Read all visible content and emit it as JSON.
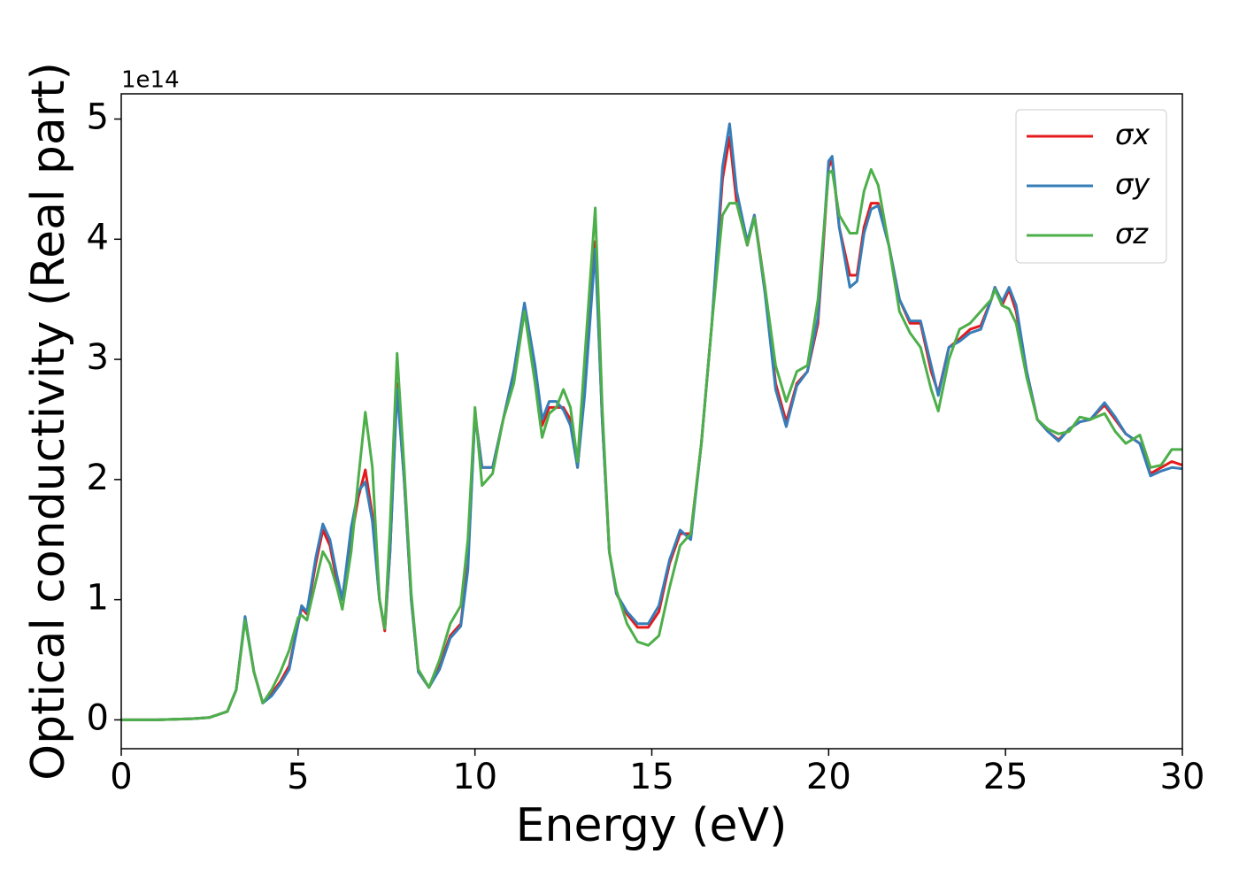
{
  "chart_data": {
    "type": "line",
    "xlabel": "Energy (eV)",
    "ylabel": "Optical conductivity (Real part)",
    "y_offset_text": "1e14",
    "xlim": [
      0,
      30
    ],
    "ylim": [
      -0.24,
      5.21
    ],
    "xticks": [
      0,
      5,
      10,
      15,
      20,
      25,
      30
    ],
    "yticks": [
      0,
      1,
      2,
      3,
      4,
      5
    ],
    "grid": false,
    "legend": "upper right",
    "x": [
      0,
      1,
      2,
      2.5,
      3,
      3.25,
      3.5,
      3.75,
      4,
      4.25,
      4.5,
      4.75,
      5,
      5.1,
      5.25,
      5.5,
      5.7,
      5.9,
      6.1,
      6.25,
      6.5,
      6.7,
      6.9,
      7.1,
      7.3,
      7.45,
      7.6,
      7.8,
      8.0,
      8.2,
      8.4,
      8.7,
      9.0,
      9.3,
      9.6,
      9.8,
      10.0,
      10.2,
      10.5,
      10.8,
      11.1,
      11.4,
      11.7,
      11.9,
      12.1,
      12.3,
      12.5,
      12.7,
      12.9,
      13.1,
      13.4,
      13.6,
      13.8,
      14.0,
      14.3,
      14.6,
      14.9,
      15.2,
      15.5,
      15.8,
      16.1,
      16.4,
      16.7,
      17.0,
      17.2,
      17.4,
      17.7,
      17.9,
      18.2,
      18.5,
      18.8,
      19.1,
      19.4,
      19.7,
      20.0,
      20.1,
      20.3,
      20.6,
      20.8,
      21.0,
      21.2,
      21.4,
      21.7,
      22.0,
      22.3,
      22.6,
      22.9,
      23.1,
      23.4,
      23.7,
      24.0,
      24.3,
      24.6,
      24.7,
      24.9,
      25.1,
      25.3,
      25.6,
      25.9,
      26.2,
      26.5,
      26.8,
      27.1,
      27.4,
      27.8,
      28.1,
      28.4,
      28.8,
      29.1,
      29.4,
      29.7,
      30.0
    ],
    "series": [
      {
        "name": "σx",
        "color": "#e41a1c",
        "values": [
          0,
          0,
          0.01,
          0.02,
          0.07,
          0.25,
          0.85,
          0.4,
          0.14,
          0.22,
          0.32,
          0.45,
          0.8,
          0.93,
          0.88,
          1.3,
          1.58,
          1.45,
          1.15,
          1.02,
          1.5,
          1.85,
          2.08,
          1.7,
          1.0,
          0.74,
          1.4,
          2.8,
          2.0,
          1.0,
          0.4,
          0.27,
          0.45,
          0.7,
          0.8,
          1.3,
          2.55,
          2.1,
          2.1,
          2.5,
          2.9,
          3.45,
          2.9,
          2.45,
          2.6,
          2.6,
          2.6,
          2.5,
          2.1,
          2.8,
          3.98,
          2.5,
          1.4,
          1.05,
          0.88,
          0.77,
          0.77,
          0.9,
          1.3,
          1.55,
          1.55,
          2.3,
          3.3,
          4.5,
          4.85,
          4.3,
          3.95,
          4.2,
          3.6,
          2.8,
          2.48,
          2.8,
          2.9,
          3.3,
          4.6,
          4.66,
          4.1,
          3.7,
          3.7,
          4.1,
          4.3,
          4.3,
          3.95,
          3.5,
          3.3,
          3.3,
          2.9,
          2.72,
          3.1,
          3.17,
          3.25,
          3.28,
          3.5,
          3.6,
          3.45,
          3.58,
          3.4,
          2.9,
          2.5,
          2.4,
          2.33,
          2.42,
          2.48,
          2.5,
          2.62,
          2.5,
          2.38,
          2.3,
          2.05,
          2.1,
          2.15,
          2.12
        ]
      },
      {
        "name": "σy",
        "color": "#377eb8",
        "values": [
          0,
          0,
          0.01,
          0.02,
          0.07,
          0.25,
          0.86,
          0.4,
          0.14,
          0.2,
          0.3,
          0.42,
          0.8,
          0.95,
          0.9,
          1.35,
          1.63,
          1.5,
          1.2,
          1.0,
          1.6,
          1.9,
          1.98,
          1.65,
          1.0,
          0.76,
          1.4,
          2.75,
          2.0,
          1.0,
          0.4,
          0.27,
          0.42,
          0.68,
          0.78,
          1.25,
          2.55,
          2.1,
          2.1,
          2.5,
          2.9,
          3.47,
          2.95,
          2.5,
          2.65,
          2.65,
          2.58,
          2.45,
          2.1,
          2.7,
          3.92,
          2.5,
          1.4,
          1.05,
          0.9,
          0.8,
          0.8,
          0.95,
          1.33,
          1.58,
          1.5,
          2.3,
          3.3,
          4.6,
          4.96,
          4.4,
          3.98,
          4.2,
          3.55,
          2.75,
          2.44,
          2.78,
          2.9,
          3.35,
          4.65,
          4.69,
          4.1,
          3.6,
          3.65,
          4.05,
          4.25,
          4.28,
          3.95,
          3.5,
          3.32,
          3.32,
          2.95,
          2.7,
          3.1,
          3.15,
          3.22,
          3.25,
          3.5,
          3.6,
          3.48,
          3.6,
          3.45,
          2.9,
          2.5,
          2.4,
          2.32,
          2.42,
          2.48,
          2.5,
          2.64,
          2.52,
          2.38,
          2.3,
          2.03,
          2.07,
          2.1,
          2.09
        ]
      },
      {
        "name": "σz",
        "color": "#4daf4a",
        "values": [
          0,
          0,
          0.01,
          0.02,
          0.07,
          0.25,
          0.83,
          0.4,
          0.14,
          0.25,
          0.4,
          0.58,
          0.85,
          0.87,
          0.83,
          1.15,
          1.4,
          1.3,
          1.1,
          0.92,
          1.4,
          2.0,
          2.56,
          2.1,
          1.0,
          0.76,
          1.6,
          3.05,
          2.1,
          1.05,
          0.42,
          0.27,
          0.5,
          0.8,
          0.95,
          1.5,
          2.6,
          1.95,
          2.05,
          2.5,
          2.8,
          3.4,
          2.8,
          2.35,
          2.55,
          2.6,
          2.75,
          2.6,
          2.15,
          3.0,
          4.26,
          2.6,
          1.4,
          1.08,
          0.8,
          0.65,
          0.62,
          0.7,
          1.1,
          1.45,
          1.55,
          2.3,
          3.3,
          4.2,
          4.3,
          4.3,
          3.95,
          4.18,
          3.6,
          2.95,
          2.65,
          2.9,
          2.95,
          3.5,
          4.55,
          4.57,
          4.2,
          4.05,
          4.05,
          4.4,
          4.58,
          4.45,
          3.95,
          3.4,
          3.22,
          3.1,
          2.75,
          2.57,
          3.0,
          3.25,
          3.3,
          3.4,
          3.5,
          3.58,
          3.45,
          3.42,
          3.3,
          2.85,
          2.5,
          2.42,
          2.38,
          2.4,
          2.52,
          2.5,
          2.55,
          2.4,
          2.3,
          2.37,
          2.1,
          2.12,
          2.25,
          2.25
        ]
      }
    ]
  }
}
